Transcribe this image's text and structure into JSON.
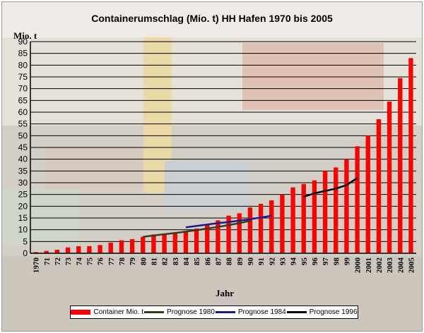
{
  "chart_data": {
    "type": "bar",
    "title": "Containerumschlag (Mio. t) HH Hafen 1970 bis 2005",
    "ylabel": "Mio. t",
    "xlabel": "Jahr",
    "ylim": [
      0,
      90
    ],
    "ytick_step": 5,
    "grid": true,
    "legend_position": "bottom",
    "categories": [
      "1970",
      "71",
      "72",
      "73",
      "74",
      "75",
      "76",
      "77",
      "78",
      "79",
      "80",
      "81",
      "82",
      "83",
      "84",
      "85",
      "86",
      "87",
      "88",
      "89",
      "90",
      "91",
      "92",
      "93",
      "94",
      "95",
      "96",
      "97",
      "98",
      "99",
      "2000",
      "2001",
      "2002",
      "2003",
      "2004",
      "2005"
    ],
    "series": [
      {
        "name": "Container Mio. t",
        "type": "bar",
        "color": "#ff0000",
        "values": [
          0.5,
          1,
          1.5,
          2.5,
          3,
          3,
          3.5,
          4.5,
          5.5,
          6,
          7,
          8,
          8,
          8.5,
          9.5,
          10.5,
          12,
          14,
          16,
          17,
          19.5,
          21,
          22.5,
          25,
          28,
          29.5,
          31,
          35,
          36.5,
          40,
          45.5,
          50,
          57,
          64.5,
          74.5,
          83
        ]
      },
      {
        "name": "Prognose 1980",
        "type": "line",
        "color": "#3a3a1c",
        "x": [
          "80",
          "81",
          "82",
          "83",
          "84",
          "85",
          "86",
          "87",
          "88",
          "89",
          "90"
        ],
        "values": [
          7,
          7.6,
          8.1,
          8.6,
          9.2,
          9.8,
          10.5,
          11.2,
          12,
          12.8,
          13.8
        ]
      },
      {
        "name": "Prognose 1984",
        "type": "line",
        "color": "#1a1a8c",
        "x": [
          "84",
          "85",
          "86",
          "87",
          "88",
          "89",
          "90",
          "91",
          "92"
        ],
        "values": [
          11,
          11.6,
          12.2,
          12.8,
          13.3,
          13.9,
          14.5,
          15.2,
          16
        ]
      },
      {
        "name": "Prognose 1996",
        "type": "line",
        "color": "#000000",
        "x": [
          "95",
          "96",
          "97",
          "98",
          "99",
          "2000"
        ],
        "values": [
          24,
          25.5,
          26.5,
          27.5,
          29,
          32
        ]
      }
    ]
  }
}
